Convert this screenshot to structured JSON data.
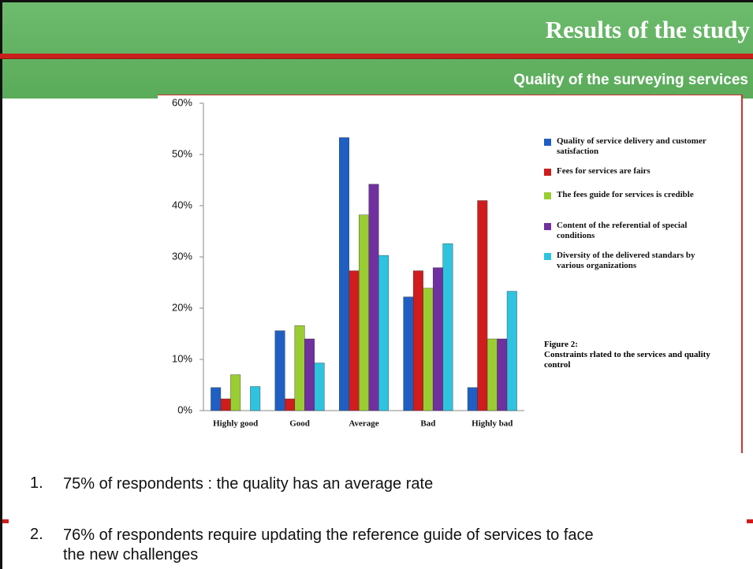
{
  "header": {
    "title": "Results of the study",
    "subtitle": "Quality of the surveying services"
  },
  "chart_data": {
    "type": "bar",
    "categories": [
      "Highly good",
      "Good",
      "Average",
      "Bad",
      "Highly bad"
    ],
    "series": [
      {
        "name": "Quality of service delivery and customer satisfaction",
        "color": "#1f5fc4",
        "values": [
          4.5,
          15.6,
          53.3,
          22.2,
          4.5
        ]
      },
      {
        "name": "Fees for services are fairs",
        "color": "#d01c1c",
        "values": [
          2.3,
          2.3,
          27.3,
          27.3,
          41
        ]
      },
      {
        "name": "The fees guide for services is credible",
        "color": "#9acd32",
        "values": [
          7,
          16.6,
          38.2,
          23.9,
          14
        ]
      },
      {
        "name": "Content of the referential of special conditions",
        "color": "#7030a0",
        "values": [
          0,
          14,
          44.2,
          27.9,
          14
        ]
      },
      {
        "name": "Diversity of the delivered standars by various organizations",
        "color": "#2ec4e0",
        "values": [
          4.7,
          9.3,
          30.3,
          32.6,
          23.3
        ]
      }
    ],
    "ylim": [
      0,
      60
    ],
    "yticks": [
      {
        "value": 0,
        "label": "0%"
      },
      {
        "value": 10,
        "label": "10%"
      },
      {
        "value": 20,
        "label": "20%"
      },
      {
        "value": 30,
        "label": "30%"
      },
      {
        "value": 40,
        "label": "40%"
      },
      {
        "value": 50,
        "label": "50%"
      },
      {
        "value": 60,
        "label": "60%"
      }
    ],
    "caption": {
      "label": "Figure 2:",
      "text": "Constraints rlated to the services and quality control"
    }
  },
  "bullets": [
    {
      "number": "1.",
      "text": "75% of respondents : the quality has an average rate"
    },
    {
      "number": "2.",
      "text": "76% of respondents require updating the reference guide of services to face the new challenges"
    }
  ]
}
